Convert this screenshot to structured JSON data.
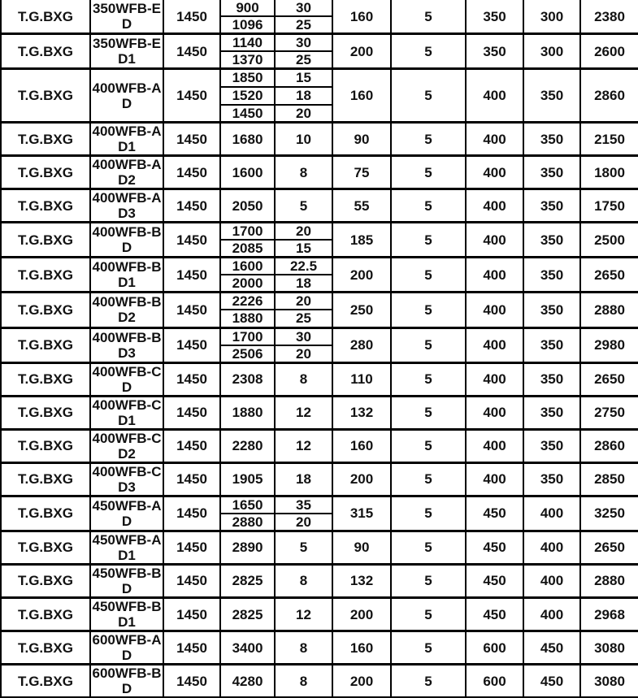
{
  "table": {
    "rows": [
      {
        "series": "T.G.BXG",
        "model": "350WFB-ED",
        "speed": "1450",
        "flow": [
          "900",
          "1096"
        ],
        "head": [
          "30",
          "25"
        ],
        "tail": [
          "160",
          "5",
          "350",
          "300",
          "2380"
        ]
      },
      {
        "series": "T.G.BXG",
        "model": "350WFB-ED1",
        "speed": "1450",
        "flow": [
          "1140",
          "1370"
        ],
        "head": [
          "30",
          "25"
        ],
        "tail": [
          "200",
          "5",
          "350",
          "300",
          "2600"
        ]
      },
      {
        "series": "T.G.BXG",
        "model": "400WFB-AD",
        "speed": "1450",
        "flow": [
          "1850",
          "1520",
          "1450"
        ],
        "head": [
          "15",
          "18",
          "20"
        ],
        "tail": [
          "160",
          "5",
          "400",
          "350",
          "2860"
        ]
      },
      {
        "series": "T.G.BXG",
        "model": "400WFB-AD1",
        "speed": "1450",
        "flow": [
          "1680"
        ],
        "head": [
          "10"
        ],
        "tail": [
          "90",
          "5",
          "400",
          "350",
          "2150"
        ]
      },
      {
        "series": "T.G.BXG",
        "model": "400WFB-AD2",
        "speed": "1450",
        "flow": [
          "1600"
        ],
        "head": [
          "8"
        ],
        "tail": [
          "75",
          "5",
          "400",
          "350",
          "1800"
        ]
      },
      {
        "series": "T.G.BXG",
        "model": "400WFB-AD3",
        "speed": "1450",
        "flow": [
          "2050"
        ],
        "head": [
          "5"
        ],
        "tail": [
          "55",
          "5",
          "400",
          "350",
          "1750"
        ]
      },
      {
        "series": "T.G.BXG",
        "model": "400WFB-BD",
        "speed": "1450",
        "flow": [
          "1700",
          "2085"
        ],
        "head": [
          "20",
          "15"
        ],
        "tail": [
          "185",
          "5",
          "400",
          "350",
          "2500"
        ]
      },
      {
        "series": "T.G.BXG",
        "model": "400WFB-BD1",
        "speed": "1450",
        "flow": [
          "1600",
          "2000"
        ],
        "head": [
          "22.5",
          "18"
        ],
        "tail": [
          "200",
          "5",
          "400",
          "350",
          "2650"
        ]
      },
      {
        "series": "T.G.BXG",
        "model": "400WFB-BD2",
        "speed": "1450",
        "flow": [
          "2226",
          "1880"
        ],
        "head": [
          "20",
          "25"
        ],
        "tail": [
          "250",
          "5",
          "400",
          "350",
          "2880"
        ]
      },
      {
        "series": "T.G.BXG",
        "model": "400WFB-BD3",
        "speed": "1450",
        "flow": [
          "1700",
          "2506"
        ],
        "head": [
          "30",
          "20"
        ],
        "tail": [
          "280",
          "5",
          "400",
          "350",
          "2980"
        ]
      },
      {
        "series": "T.G.BXG",
        "model": "400WFB-CD",
        "speed": "1450",
        "flow": [
          "2308"
        ],
        "head": [
          "8"
        ],
        "tail": [
          "110",
          "5",
          "400",
          "350",
          "2650"
        ]
      },
      {
        "series": "T.G.BXG",
        "model": "400WFB-CD1",
        "speed": "1450",
        "flow": [
          "1880"
        ],
        "head": [
          "12"
        ],
        "tail": [
          "132",
          "5",
          "400",
          "350",
          "2750"
        ]
      },
      {
        "series": "T.G.BXG",
        "model": "400WFB-CD2",
        "speed": "1450",
        "flow": [
          "2280"
        ],
        "head": [
          "12"
        ],
        "tail": [
          "160",
          "5",
          "400",
          "350",
          "2860"
        ]
      },
      {
        "series": "T.G.BXG",
        "model": "400WFB-CD3",
        "speed": "1450",
        "flow": [
          "1905"
        ],
        "head": [
          "18"
        ],
        "tail": [
          "200",
          "5",
          "400",
          "350",
          "2850"
        ]
      },
      {
        "series": "T.G.BXG",
        "model": "450WFB-AD",
        "speed": "1450",
        "flow": [
          "1650",
          "2880"
        ],
        "head": [
          "35",
          "20"
        ],
        "tail": [
          "315",
          "5",
          "450",
          "400",
          "3250"
        ]
      },
      {
        "series": "T.G.BXG",
        "model": "450WFB-AD1",
        "speed": "1450",
        "flow": [
          "2890"
        ],
        "head": [
          "5"
        ],
        "tail": [
          "90",
          "5",
          "450",
          "400",
          "2650"
        ]
      },
      {
        "series": "T.G.BXG",
        "model": "450WFB-BD",
        "speed": "1450",
        "flow": [
          "2825"
        ],
        "head": [
          "8"
        ],
        "tail": [
          "132",
          "5",
          "450",
          "400",
          "2880"
        ]
      },
      {
        "series": "T.G.BXG",
        "model": "450WFB-BD1",
        "speed": "1450",
        "flow": [
          "2825"
        ],
        "head": [
          "12"
        ],
        "tail": [
          "200",
          "5",
          "450",
          "400",
          "2968"
        ]
      },
      {
        "series": "T.G.BXG",
        "model": "600WFB-AD",
        "speed": "1450",
        "flow": [
          "3400"
        ],
        "head": [
          "8"
        ],
        "tail": [
          "160",
          "5",
          "600",
          "450",
          "3080"
        ]
      },
      {
        "series": "T.G.BXG",
        "model": "600WFB-BD",
        "speed": "1450",
        "flow": [
          "4280"
        ],
        "head": [
          "8"
        ],
        "tail": [
          "200",
          "5",
          "600",
          "450",
          "3080"
        ]
      }
    ],
    "colors": {
      "border": "#000000",
      "text": "#121212",
      "background": "#ffffff"
    }
  }
}
